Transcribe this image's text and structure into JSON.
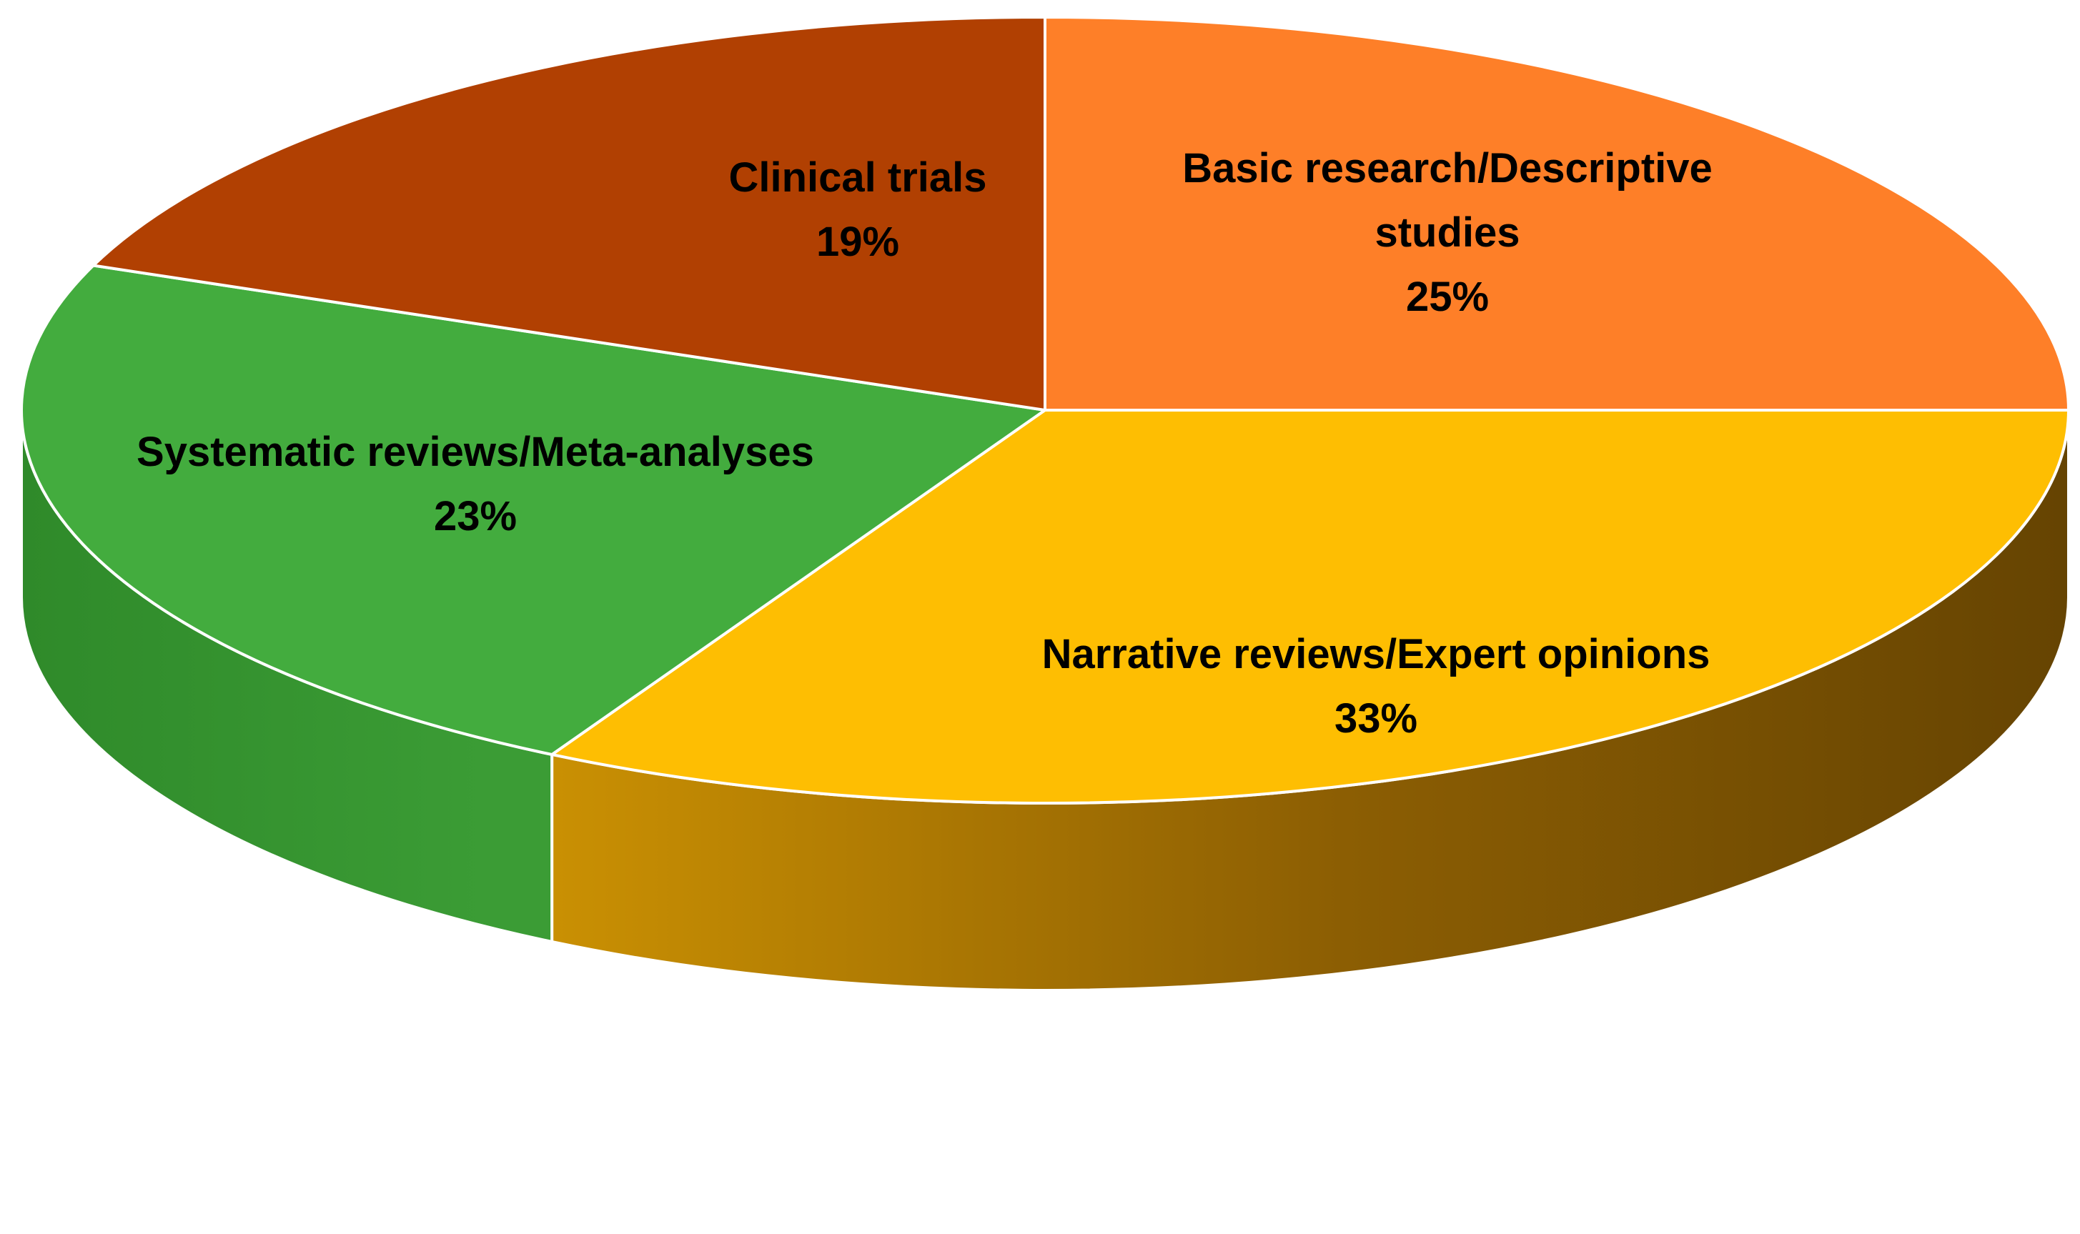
{
  "chart_data": {
    "type": "pie",
    "style": "3d",
    "title": "",
    "slices": [
      {
        "label_lines": [
          "Basic research/Descriptive",
          "studies"
        ],
        "value_text": "25%",
        "value": 25,
        "color": "#FE7F28",
        "side_color": "#C0601E"
      },
      {
        "label_lines": [
          "Narrative reviews/Expert opinions"
        ],
        "value_text": "33%",
        "value": 33,
        "color": "#FEBE02",
        "side_color": "#C99403"
      },
      {
        "label_lines": [
          "Systematic reviews/Meta-analyses"
        ],
        "value_text": "23%",
        "value": 23,
        "color": "#43AC3E",
        "side_color": "#2F8A2A"
      },
      {
        "label_lines": [
          "Clinical trials"
        ],
        "value_text": "19%",
        "value": 19,
        "color": "#B14002",
        "side_color": "#7E2E02"
      }
    ],
    "start_angle_deg": 270,
    "direction": "clockwise",
    "legend": "none"
  }
}
